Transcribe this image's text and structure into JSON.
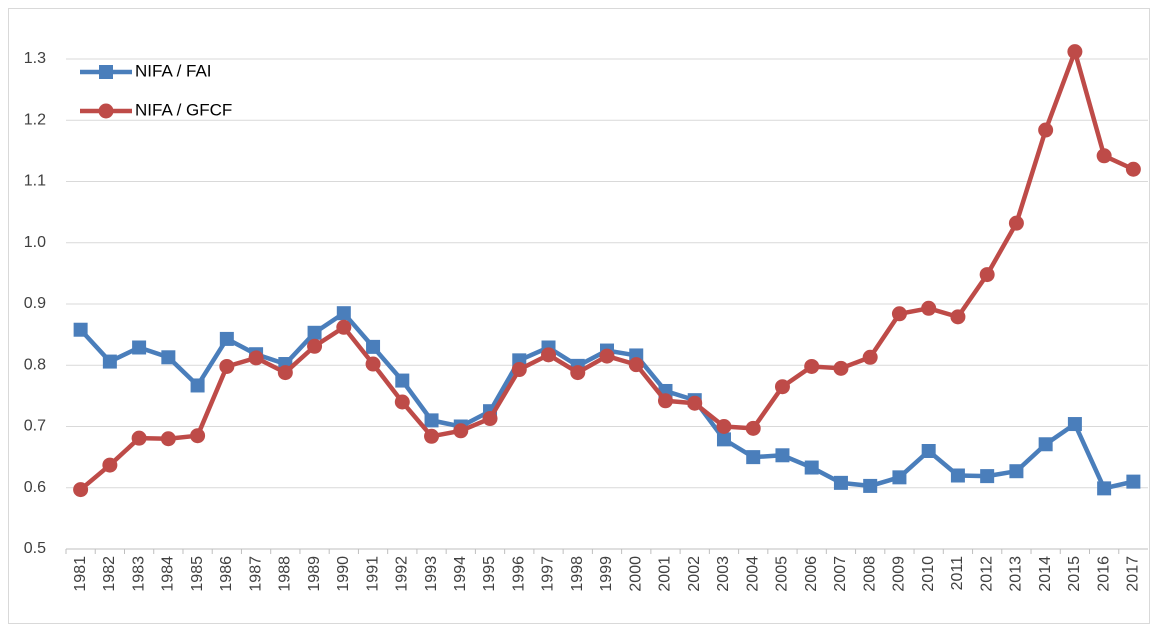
{
  "chart_data": {
    "type": "line",
    "categories": [
      "1981",
      "1982",
      "1983",
      "1984",
      "1985",
      "1986",
      "1987",
      "1988",
      "1989",
      "1990",
      "1991",
      "1992",
      "1993",
      "1994",
      "1995",
      "1996",
      "1997",
      "1998",
      "1999",
      "2000",
      "2001",
      "2002",
      "2003",
      "2004",
      "2005",
      "2006",
      "2007",
      "2008",
      "2009",
      "2010",
      "2011",
      "2012",
      "2013",
      "2014",
      "2015",
      "2016",
      "2017"
    ],
    "series": [
      {
        "name": "NIFA / FAI",
        "color": "#4a7ebb",
        "marker": "square",
        "values": [
          0.858,
          0.806,
          0.829,
          0.813,
          0.767,
          0.843,
          0.818,
          0.802,
          0.853,
          0.885,
          0.83,
          0.775,
          0.71,
          0.7,
          0.725,
          0.808,
          0.829,
          0.799,
          0.824,
          0.816,
          0.758,
          0.743,
          0.679,
          0.65,
          0.653,
          0.633,
          0.608,
          0.603,
          0.617,
          0.66,
          0.62,
          0.619,
          0.627,
          0.671,
          0.704,
          0.599,
          0.61
        ]
      },
      {
        "name": "NIFA / GFCF",
        "color": "#be4b48",
        "marker": "circle",
        "values": [
          0.597,
          0.637,
          0.681,
          0.68,
          0.685,
          0.798,
          0.812,
          0.788,
          0.831,
          0.862,
          0.802,
          0.74,
          0.684,
          0.693,
          0.713,
          0.793,
          0.817,
          0.788,
          0.815,
          0.801,
          0.742,
          0.738,
          0.7,
          0.697,
          0.765,
          0.798,
          0.795,
          0.813,
          0.884,
          0.893,
          0.879,
          0.948,
          1.032,
          1.184,
          1.312,
          1.142,
          1.12
        ]
      }
    ],
    "ylim": [
      0.5,
      1.3
    ],
    "yticks": [
      0.5,
      0.6,
      0.7,
      0.8,
      0.9,
      {
        "value": 1,
        "label": "1.0"
      },
      1.1,
      1.2,
      1.3
    ],
    "grid": true,
    "legend": "upper-left"
  }
}
